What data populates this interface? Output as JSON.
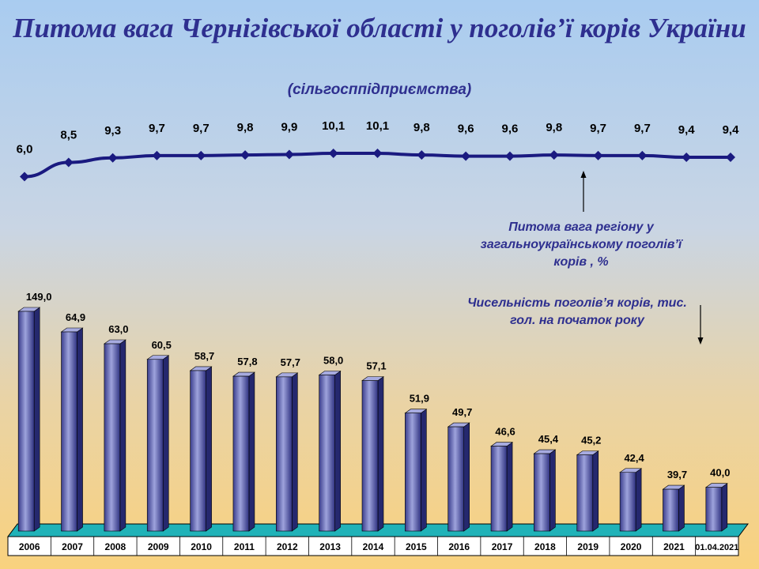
{
  "title": "Питома вага Чернігівської області у поголів’ї корів України",
  "subtitle": "(сільгосппідприємства)",
  "notes": {
    "line_series": "Питома вага регіону у загальноукраїнському поголів’ї корів , %",
    "bar_series": "Чисельність поголів’я корів, тис. гол. на початок року"
  },
  "colors": {
    "line": "#1a1a80",
    "bar_front": "#6f74b8",
    "floor": "#20b2b8",
    "text": "#2e2f8f"
  },
  "chart_data": [
    {
      "type": "line",
      "categories": [
        "2006",
        "2007",
        "2008",
        "2009",
        "2010",
        "2011",
        "2012",
        "2013",
        "2014",
        "2015",
        "2016",
        "2017",
        "2018",
        "2019",
        "2020",
        "2021",
        "01.04.2021"
      ],
      "series": [
        {
          "name": "Питома вага регіону у загальноукраїнському поголів’ї корів , %",
          "values": [
            6.0,
            8.5,
            9.3,
            9.7,
            9.7,
            9.8,
            9.9,
            10.1,
            10.1,
            9.8,
            9.6,
            9.6,
            9.8,
            9.7,
            9.7,
            9.4,
            9.4
          ],
          "labels": [
            "6,0",
            "8,5",
            "9,3",
            "9,7",
            "9,7",
            "9,8",
            "9,9",
            "10,1",
            "10,1",
            "9,8",
            "9,6",
            "9,6",
            "9,8",
            "9,7",
            "9,7",
            "9,4",
            "9,4"
          ]
        }
      ]
    },
    {
      "type": "bar",
      "categories": [
        "2006",
        "2007",
        "2008",
        "2009",
        "2010",
        "2011",
        "2012",
        "2013",
        "2014",
        "2015",
        "2016",
        "2017",
        "2018",
        "2019",
        "2020",
        "2021",
        "01.04.2021"
      ],
      "series": [
        {
          "name": "Чисельність поголів’я корів, тис. гол. на початок року",
          "values": [
            149.0,
            64.9,
            63.0,
            60.5,
            58.7,
            57.8,
            57.7,
            58.0,
            57.1,
            51.9,
            49.7,
            46.6,
            45.4,
            45.2,
            42.4,
            39.7,
            40.0
          ],
          "labels": [
            "149,0",
            "64,9",
            "63,0",
            "60,5",
            "58,7",
            "57,8",
            "57,7",
            "58,0",
            "57,1",
            "51,9",
            "49,7",
            "46,6",
            "45,4",
            "45,2",
            "42,4",
            "39,7",
            "40,0"
          ]
        }
      ]
    }
  ]
}
